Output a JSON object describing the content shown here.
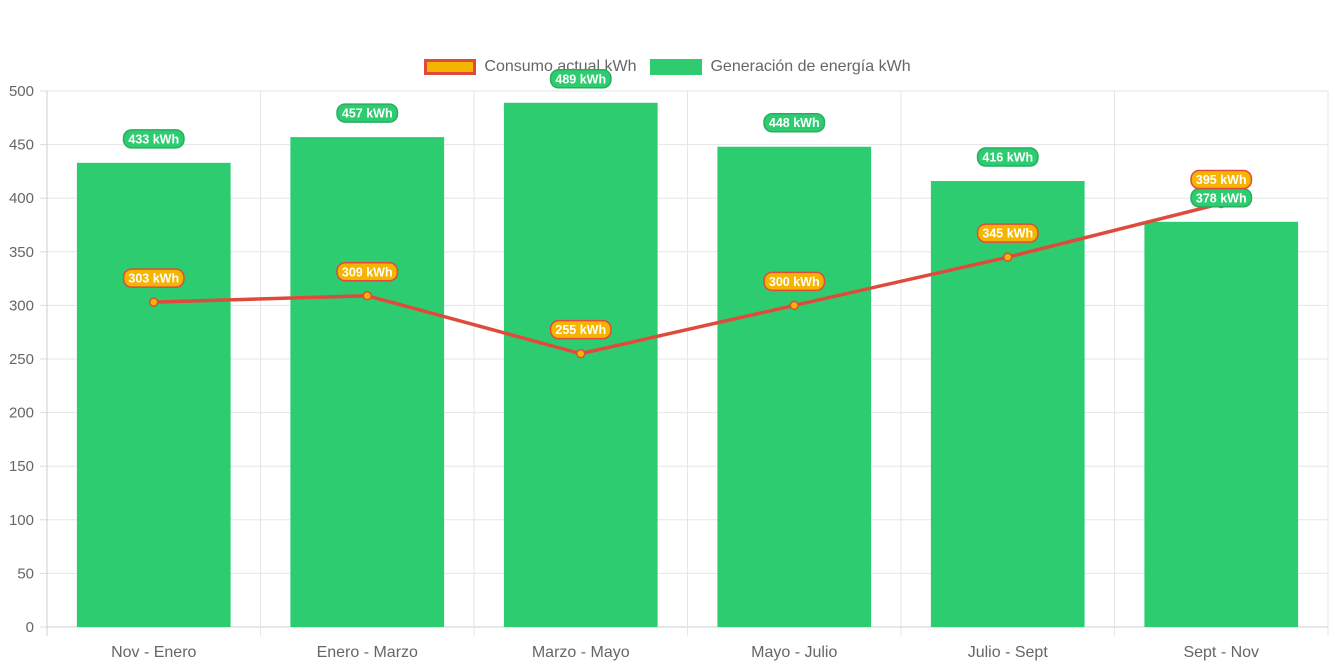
{
  "chart_data": {
    "type": "bar",
    "categories": [
      "Nov - Enero",
      "Enero - Marzo",
      "Marzo - Mayo",
      "Mayo - Julio",
      "Julio - Sept",
      "Sept - Nov"
    ],
    "series": [
      {
        "name": "Consumo actual kWh",
        "type": "line",
        "values": [
          303,
          309,
          255,
          300,
          345,
          395
        ],
        "labels": [
          "303 kWh",
          "309 kWh",
          "255 kWh",
          "300 kWh",
          "345 kWh",
          "395 kWh"
        ],
        "color": "#e04a3c",
        "fill": "#f5b400"
      },
      {
        "name": "Generación de energía kWh",
        "type": "bar",
        "values": [
          433,
          457,
          489,
          448,
          416,
          378
        ],
        "labels": [
          "433 kWh",
          "457 kWh",
          "489 kWh",
          "448 kWh",
          "416 kWh",
          "378 kWh"
        ],
        "color": "#2ecc71"
      }
    ],
    "ylim": [
      0,
      500
    ],
    "yticks": [
      "0",
      "50",
      "100",
      "150",
      "200",
      "250",
      "300",
      "350",
      "400",
      "450",
      "500"
    ],
    "grid": true,
    "legend_position": "top"
  }
}
